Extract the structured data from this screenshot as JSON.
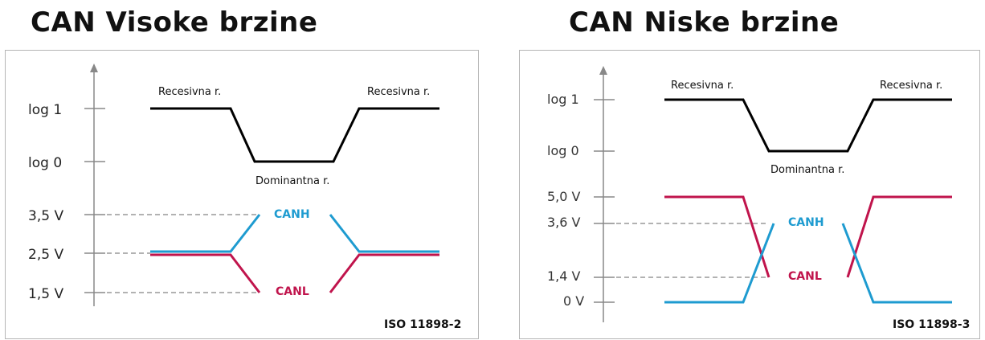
{
  "left": {
    "title": "CAN Visoke brzine",
    "y_labels": {
      "log1": "log 1",
      "log0": "log 0",
      "v_high": "3,5 V",
      "v_mid": "2,5 V",
      "v_low": "1,5 V"
    },
    "annotations": {
      "recessive_left": "Recesivna r.",
      "recessive_right": "Recesivna r.",
      "dominant": "Dominantna r.",
      "canh": "CANH",
      "canl": "CANL"
    },
    "standard": "ISO 11898-2"
  },
  "right": {
    "title": "CAN Niske brzine",
    "y_labels": {
      "log1": "log 1",
      "log0": "log 0",
      "v5": "5,0 V",
      "v36": "3,6 V",
      "v14": "1,4 V",
      "v0": "0 V"
    },
    "annotations": {
      "recessive_left": "Recesivna r.",
      "recessive_right": "Recesivna r.",
      "dominant": "Dominantna r.",
      "canh": "CANH",
      "canl": "CANL"
    },
    "standard": "ISO 11898-3"
  },
  "colors": {
    "canh": "#1e9bd0",
    "canl": "#c0144c",
    "logic": "#000000",
    "axis": "#888888",
    "dashed": "#999999"
  }
}
